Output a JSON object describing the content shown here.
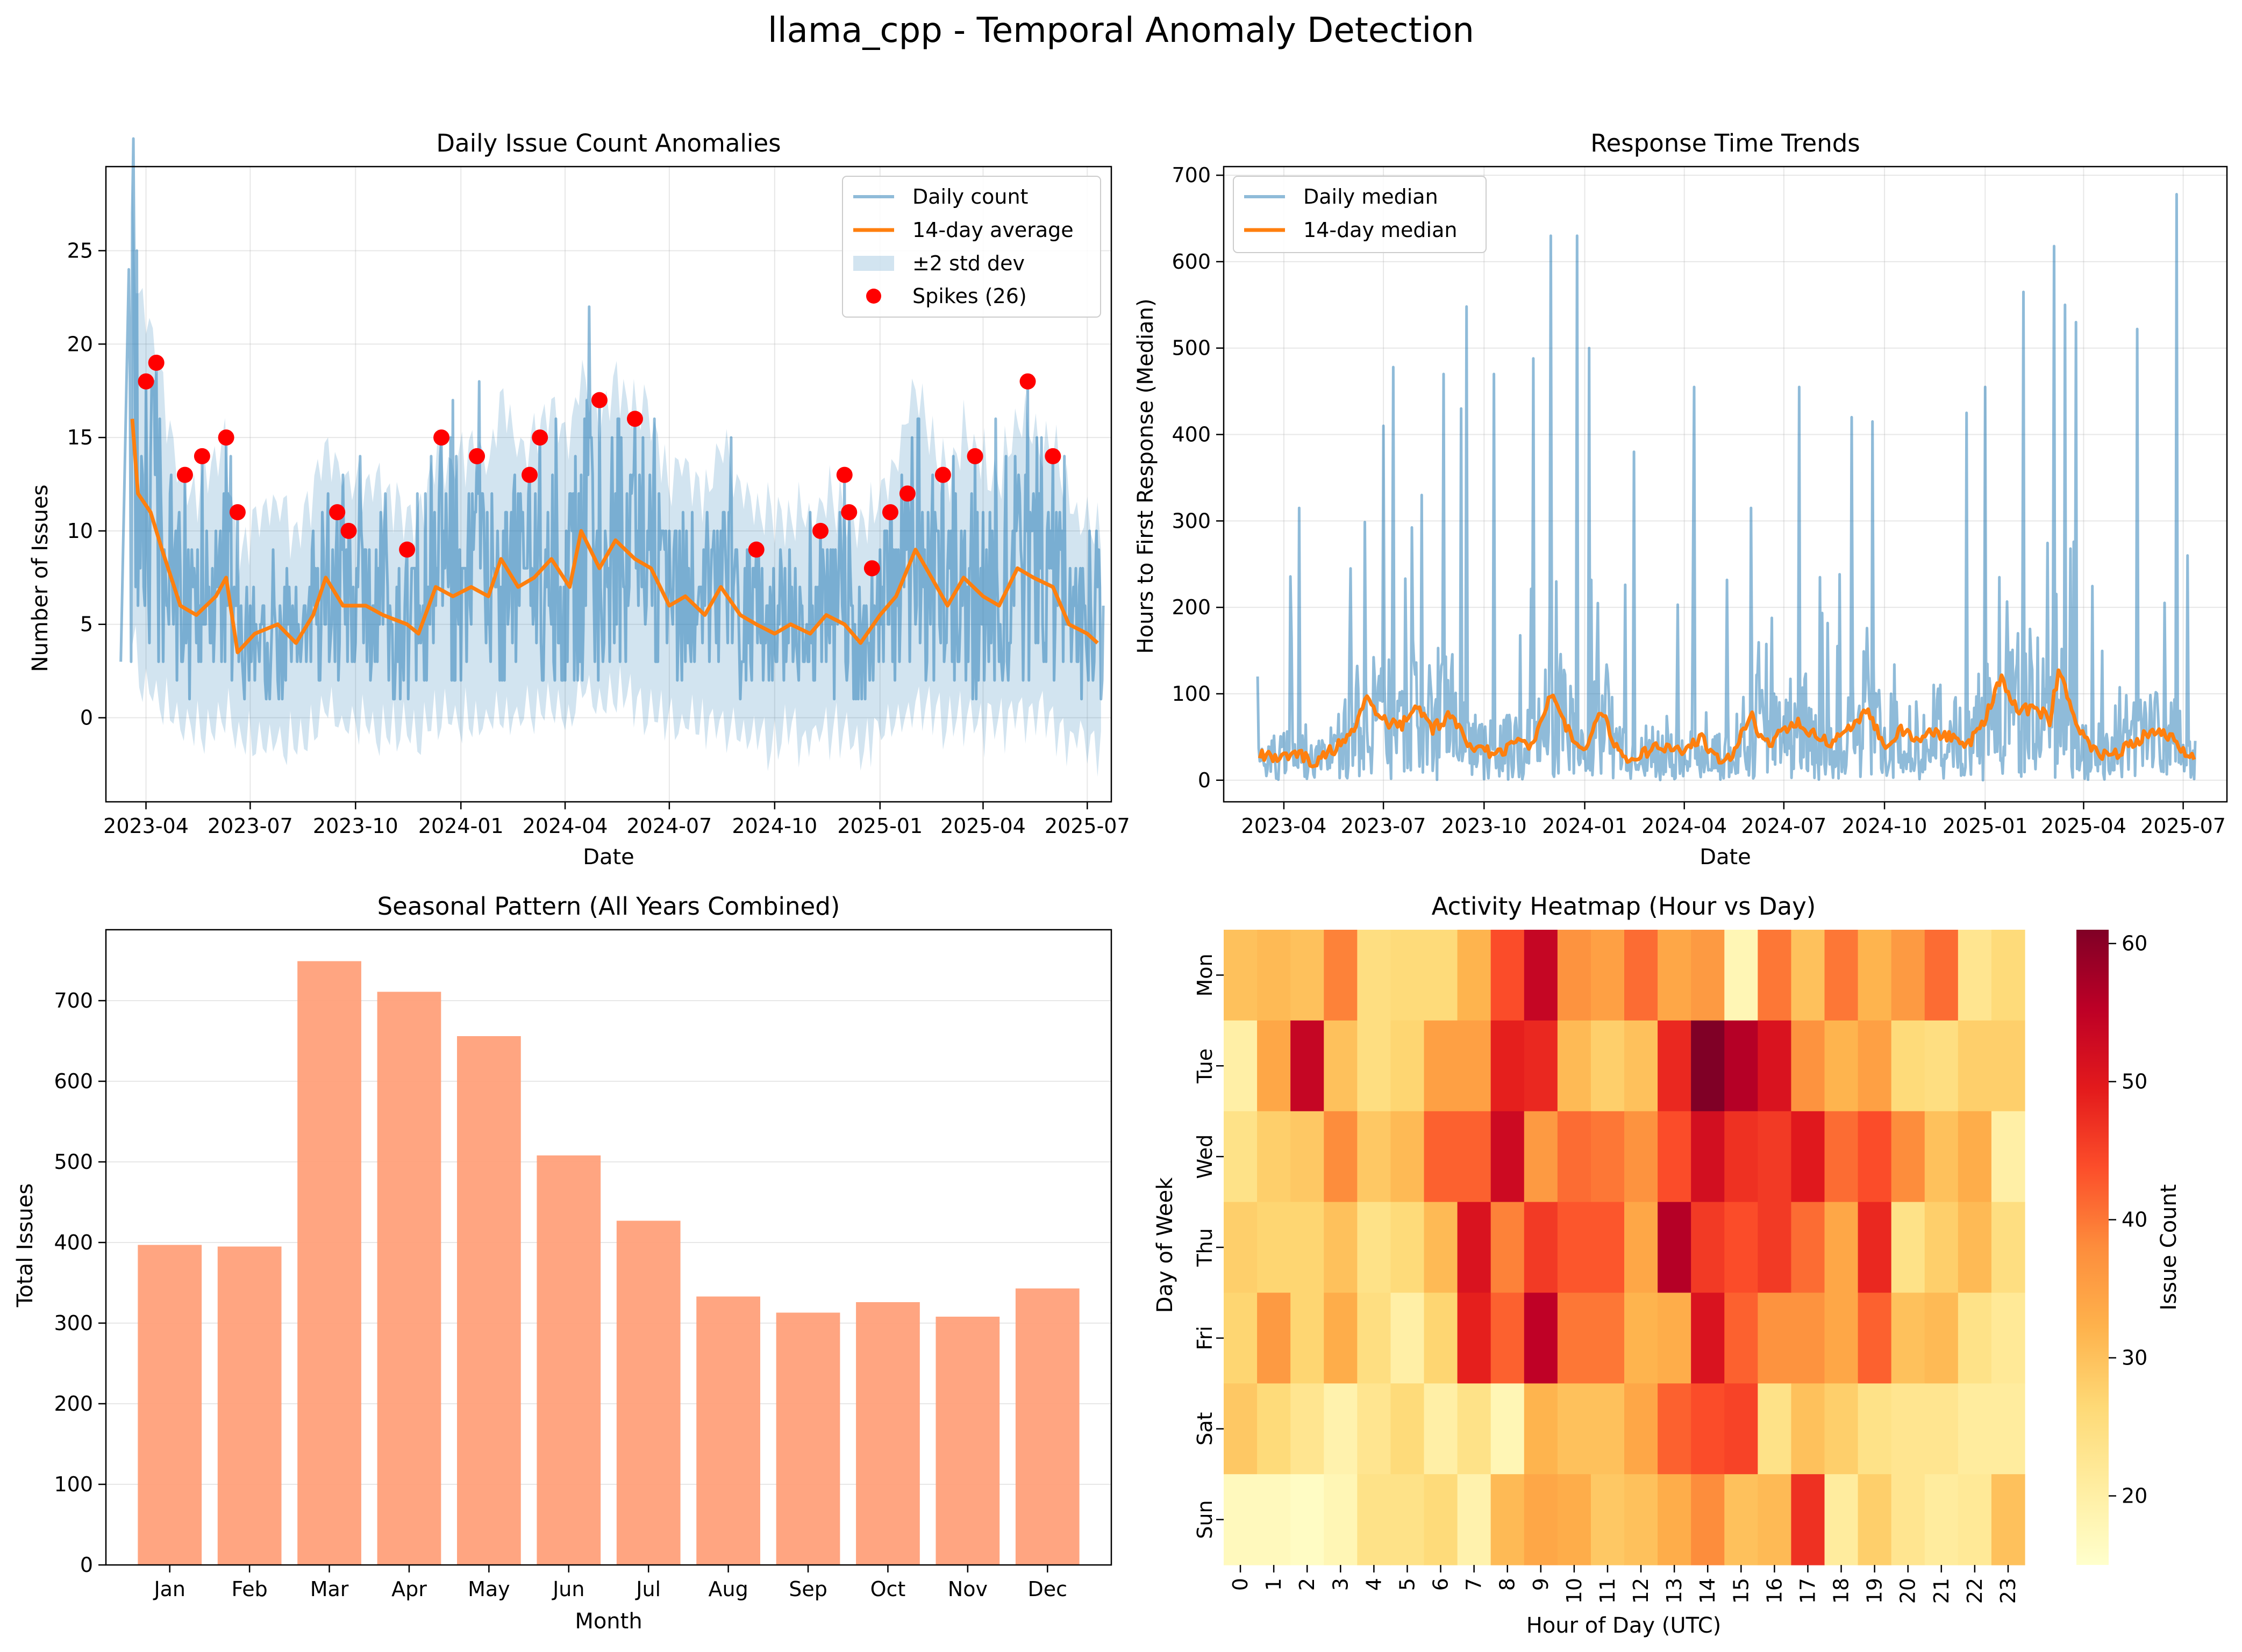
{
  "suptitle": "llama_cpp - Temporal Anomaly Detection",
  "colors": {
    "daily": "#1f77b4",
    "avg": "#ff7f0e",
    "band": "#1f77b4",
    "spike": "#ff0000",
    "bar": "#ffa07a"
  },
  "chart_data": [
    {
      "type": "line",
      "title": "Daily Issue Count Anomalies",
      "xlabel": "Date",
      "ylabel": "Number of Issues",
      "x_range": [
        "2023-02-25",
        "2025-07-22"
      ],
      "ylim": [
        -4.5,
        29.5
      ],
      "x_ticks": [
        "2023-04",
        "2023-07",
        "2023-10",
        "2024-01",
        "2024-04",
        "2024-07",
        "2024-10",
        "2025-01",
        "2025-04",
        "2025-07"
      ],
      "y_ticks": [
        0,
        5,
        10,
        15,
        20,
        25
      ],
      "grid": true,
      "legend_position": "top-right",
      "legend": [
        "Daily count",
        "14-day average",
        "±2 std dev",
        "Spikes (26)"
      ],
      "avg_series": [
        [
          "2023-03-20",
          16
        ],
        [
          "2023-03-25",
          12
        ],
        [
          "2023-04-05",
          11
        ],
        [
          "2023-04-15",
          9
        ],
        [
          "2023-05-01",
          6
        ],
        [
          "2023-05-15",
          5.5
        ],
        [
          "2023-06-01",
          6.5
        ],
        [
          "2023-06-10",
          7.5
        ],
        [
          "2023-06-20",
          3.5
        ],
        [
          "2023-07-05",
          4.5
        ],
        [
          "2023-07-25",
          5
        ],
        [
          "2023-08-10",
          4
        ],
        [
          "2023-08-25",
          5.5
        ],
        [
          "2023-09-05",
          7.5
        ],
        [
          "2023-09-20",
          6
        ],
        [
          "2023-10-10",
          6
        ],
        [
          "2023-10-25",
          5.5
        ],
        [
          "2023-11-15",
          5
        ],
        [
          "2023-11-25",
          4.5
        ],
        [
          "2023-12-10",
          7
        ],
        [
          "2023-12-25",
          6.5
        ],
        [
          "2024-01-10",
          7
        ],
        [
          "2024-01-25",
          6.5
        ],
        [
          "2024-02-05",
          8.5
        ],
        [
          "2024-02-20",
          7
        ],
        [
          "2024-03-05",
          7.5
        ],
        [
          "2024-03-20",
          8.5
        ],
        [
          "2024-04-05",
          7
        ],
        [
          "2024-04-15",
          10
        ],
        [
          "2024-05-01",
          8
        ],
        [
          "2024-05-15",
          9.5
        ],
        [
          "2024-06-01",
          8.5
        ],
        [
          "2024-06-15",
          8
        ],
        [
          "2024-07-01",
          6
        ],
        [
          "2024-07-15",
          6.5
        ],
        [
          "2024-08-01",
          5.5
        ],
        [
          "2024-08-15",
          7
        ],
        [
          "2024-09-01",
          5.5
        ],
        [
          "2024-09-15",
          5
        ],
        [
          "2024-10-01",
          4.5
        ],
        [
          "2024-10-15",
          5
        ],
        [
          "2024-11-01",
          4.5
        ],
        [
          "2024-11-15",
          5.5
        ],
        [
          "2024-12-01",
          5
        ],
        [
          "2024-12-15",
          4
        ],
        [
          "2025-01-01",
          5.5
        ],
        [
          "2025-01-15",
          6.5
        ],
        [
          "2025-02-01",
          9
        ],
        [
          "2025-02-15",
          7.5
        ],
        [
          "2025-03-01",
          6
        ],
        [
          "2025-03-15",
          7.5
        ],
        [
          "2025-04-01",
          6.5
        ],
        [
          "2025-04-15",
          6
        ],
        [
          "2025-05-01",
          8
        ],
        [
          "2025-05-15",
          7.5
        ],
        [
          "2025-06-01",
          7
        ],
        [
          "2025-06-15",
          5
        ],
        [
          "2025-07-01",
          4.5
        ],
        [
          "2025-07-10",
          4
        ]
      ],
      "spikes": [
        [
          "2023-04-01",
          18
        ],
        [
          "2023-04-10",
          19
        ],
        [
          "2023-05-05",
          13
        ],
        [
          "2023-05-20",
          14
        ],
        [
          "2023-06-10",
          15
        ],
        [
          "2023-06-20",
          11
        ],
        [
          "2023-09-15",
          11
        ],
        [
          "2023-09-25",
          10
        ],
        [
          "2023-11-15",
          9
        ],
        [
          "2023-12-15",
          15
        ],
        [
          "2024-01-15",
          14
        ],
        [
          "2024-03-01",
          13
        ],
        [
          "2024-03-10",
          15
        ],
        [
          "2024-05-01",
          17
        ],
        [
          "2024-06-01",
          16
        ],
        [
          "2024-09-15",
          9
        ],
        [
          "2024-11-10",
          10
        ],
        [
          "2024-12-01",
          13
        ],
        [
          "2024-12-05",
          11
        ],
        [
          "2024-12-25",
          8
        ],
        [
          "2025-01-10",
          11
        ],
        [
          "2025-01-25",
          12
        ],
        [
          "2025-02-25",
          13
        ],
        [
          "2025-03-25",
          14
        ],
        [
          "2025-05-10",
          18
        ],
        [
          "2025-06-01",
          14
        ]
      ]
    },
    {
      "type": "line",
      "title": "Response Time Trends",
      "xlabel": "Date",
      "ylabel": "Hours to First Response (Median)",
      "x_range": [
        "2023-02-05",
        "2025-08-10"
      ],
      "ylim": [
        -25,
        710
      ],
      "x_ticks": [
        "2023-04",
        "2023-07",
        "2023-10",
        "2024-01",
        "2024-04",
        "2024-07",
        "2024-10",
        "2025-01",
        "2025-04",
        "2025-07"
      ],
      "y_ticks": [
        0,
        100,
        200,
        300,
        400,
        500,
        600,
        700
      ],
      "grid": true,
      "legend_position": "top-left",
      "legend": [
        "Daily median",
        "14-day median"
      ],
      "median_series": [
        [
          "2023-03-10",
          30
        ],
        [
          "2023-03-25",
          25
        ],
        [
          "2023-04-15",
          30
        ],
        [
          "2023-05-01",
          20
        ],
        [
          "2023-05-15",
          35
        ],
        [
          "2023-06-01",
          50
        ],
        [
          "2023-06-15",
          95
        ],
        [
          "2023-07-01",
          70
        ],
        [
          "2023-07-15",
          60
        ],
        [
          "2023-08-01",
          85
        ],
        [
          "2023-08-15",
          60
        ],
        [
          "2023-09-01",
          75
        ],
        [
          "2023-09-15",
          45
        ],
        [
          "2023-10-01",
          35
        ],
        [
          "2023-10-15",
          30
        ],
        [
          "2023-11-01",
          50
        ],
        [
          "2023-11-15",
          40
        ],
        [
          "2023-12-01",
          100
        ],
        [
          "2023-12-15",
          60
        ],
        [
          "2024-01-01",
          30
        ],
        [
          "2024-01-15",
          85
        ],
        [
          "2024-02-01",
          30
        ],
        [
          "2024-02-15",
          25
        ],
        [
          "2024-03-01",
          35
        ],
        [
          "2024-03-15",
          40
        ],
        [
          "2024-04-01",
          30
        ],
        [
          "2024-04-15",
          50
        ],
        [
          "2024-05-01",
          25
        ],
        [
          "2024-05-15",
          30
        ],
        [
          "2024-06-01",
          75
        ],
        [
          "2024-06-15",
          40
        ],
        [
          "2024-07-01",
          60
        ],
        [
          "2024-07-15",
          65
        ],
        [
          "2024-08-01",
          50
        ],
        [
          "2024-08-15",
          45
        ],
        [
          "2024-09-01",
          60
        ],
        [
          "2024-09-15",
          85
        ],
        [
          "2024-10-01",
          40
        ],
        [
          "2024-10-15",
          60
        ],
        [
          "2024-11-01",
          45
        ],
        [
          "2024-11-15",
          55
        ],
        [
          "2024-12-01",
          50
        ],
        [
          "2024-12-15",
          40
        ],
        [
          "2025-01-01",
          70
        ],
        [
          "2025-01-15",
          120
        ],
        [
          "2025-02-01",
          80
        ],
        [
          "2025-02-15",
          85
        ],
        [
          "2025-03-01",
          70
        ],
        [
          "2025-03-10",
          130
        ],
        [
          "2025-03-25",
          60
        ],
        [
          "2025-04-10",
          35
        ],
        [
          "2025-04-25",
          25
        ],
        [
          "2025-05-10",
          40
        ],
        [
          "2025-05-25",
          50
        ],
        [
          "2025-06-10",
          55
        ],
        [
          "2025-06-25",
          45
        ],
        [
          "2025-07-10",
          25
        ]
      ],
      "daily_peaks": [
        [
          "2023-04-15",
          315
        ],
        [
          "2023-06-01",
          245
        ],
        [
          "2023-07-01",
          410
        ],
        [
          "2023-07-10",
          478
        ],
        [
          "2023-08-05",
          330
        ],
        [
          "2023-08-25",
          470
        ],
        [
          "2023-09-10",
          430
        ],
        [
          "2023-09-15",
          548
        ],
        [
          "2023-10-10",
          470
        ],
        [
          "2023-11-15",
          488
        ],
        [
          "2023-12-01",
          630
        ],
        [
          "2023-12-25",
          630
        ],
        [
          "2024-01-05",
          500
        ],
        [
          "2024-02-15",
          380
        ],
        [
          "2024-04-10",
          455
        ],
        [
          "2024-06-01",
          315
        ],
        [
          "2024-07-15",
          455
        ],
        [
          "2024-09-01",
          420
        ],
        [
          "2024-09-20",
          415
        ],
        [
          "2024-12-15",
          425
        ],
        [
          "2025-01-01",
          455
        ],
        [
          "2025-02-05",
          565
        ],
        [
          "2025-03-05",
          618
        ],
        [
          "2025-03-15",
          550
        ],
        [
          "2025-03-25",
          530
        ],
        [
          "2025-05-20",
          522
        ],
        [
          "2025-06-25",
          678
        ],
        [
          "2025-07-05",
          260
        ]
      ]
    },
    {
      "type": "bar",
      "title": "Seasonal Pattern (All Years Combined)",
      "xlabel": "Month",
      "ylabel": "Total Issues",
      "categories": [
        "Jan",
        "Feb",
        "Mar",
        "Apr",
        "May",
        "Jun",
        "Jul",
        "Aug",
        "Sep",
        "Oct",
        "Nov",
        "Dec"
      ],
      "values": [
        397,
        395,
        749,
        711,
        656,
        508,
        427,
        333,
        313,
        326,
        308,
        343
      ],
      "ylim": [
        0,
        788
      ],
      "y_ticks": [
        0,
        100,
        200,
        300,
        400,
        500,
        600,
        700
      ],
      "grid": true
    },
    {
      "type": "heatmap",
      "title": "Activity Heatmap (Hour vs Day)",
      "xlabel": "Hour of Day (UTC)",
      "ylabel": "Day of Week",
      "colorbar_label": "Issue Count",
      "colorbar_range": [
        15,
        61
      ],
      "colorbar_ticks": [
        20,
        30,
        40,
        50,
        60
      ],
      "rows": [
        "Mon",
        "Tue",
        "Wed",
        "Thu",
        "Fri",
        "Sat",
        "Sun"
      ],
      "columns": [
        "0",
        "1",
        "2",
        "3",
        "4",
        "5",
        "6",
        "7",
        "8",
        "9",
        "10",
        "11",
        "12",
        "13",
        "14",
        "15",
        "16",
        "17",
        "18",
        "19",
        "20",
        "21",
        "22",
        "23"
      ],
      "values": [
        [
          30,
          31,
          30,
          39,
          25,
          26,
          26,
          32,
          44,
          54,
          37,
          35,
          41,
          34,
          36,
          18,
          40,
          30,
          40,
          32,
          36,
          41,
          23,
          26
        ],
        [
          20,
          34,
          54,
          30,
          25,
          27,
          35,
          35,
          49,
          48,
          31,
          28,
          30,
          48,
          61,
          56,
          51,
          37,
          32,
          35,
          26,
          25,
          28,
          28
        ],
        [
          24,
          28,
          29,
          38,
          29,
          31,
          42,
          42,
          53,
          36,
          41,
          40,
          37,
          44,
          52,
          47,
          46,
          50,
          41,
          44,
          38,
          30,
          33,
          20
        ],
        [
          28,
          27,
          27,
          30,
          24,
          26,
          31,
          51,
          39,
          46,
          43,
          43,
          34,
          56,
          46,
          44,
          46,
          41,
          34,
          48,
          24,
          28,
          31,
          25
        ],
        [
          27,
          36,
          27,
          33,
          25,
          20,
          27,
          49,
          42,
          55,
          40,
          40,
          32,
          33,
          51,
          42,
          37,
          37,
          34,
          42,
          30,
          31,
          24,
          22
        ],
        [
          29,
          26,
          23,
          19,
          23,
          26,
          20,
          24,
          18,
          32,
          30,
          30,
          34,
          42,
          44,
          45,
          24,
          30,
          28,
          24,
          23,
          23,
          21,
          21
        ],
        [
          17,
          17,
          16,
          18,
          24,
          24,
          26,
          19,
          31,
          34,
          33,
          29,
          30,
          33,
          38,
          30,
          31,
          47,
          21,
          28,
          23,
          21,
          22,
          30
        ]
      ]
    }
  ]
}
